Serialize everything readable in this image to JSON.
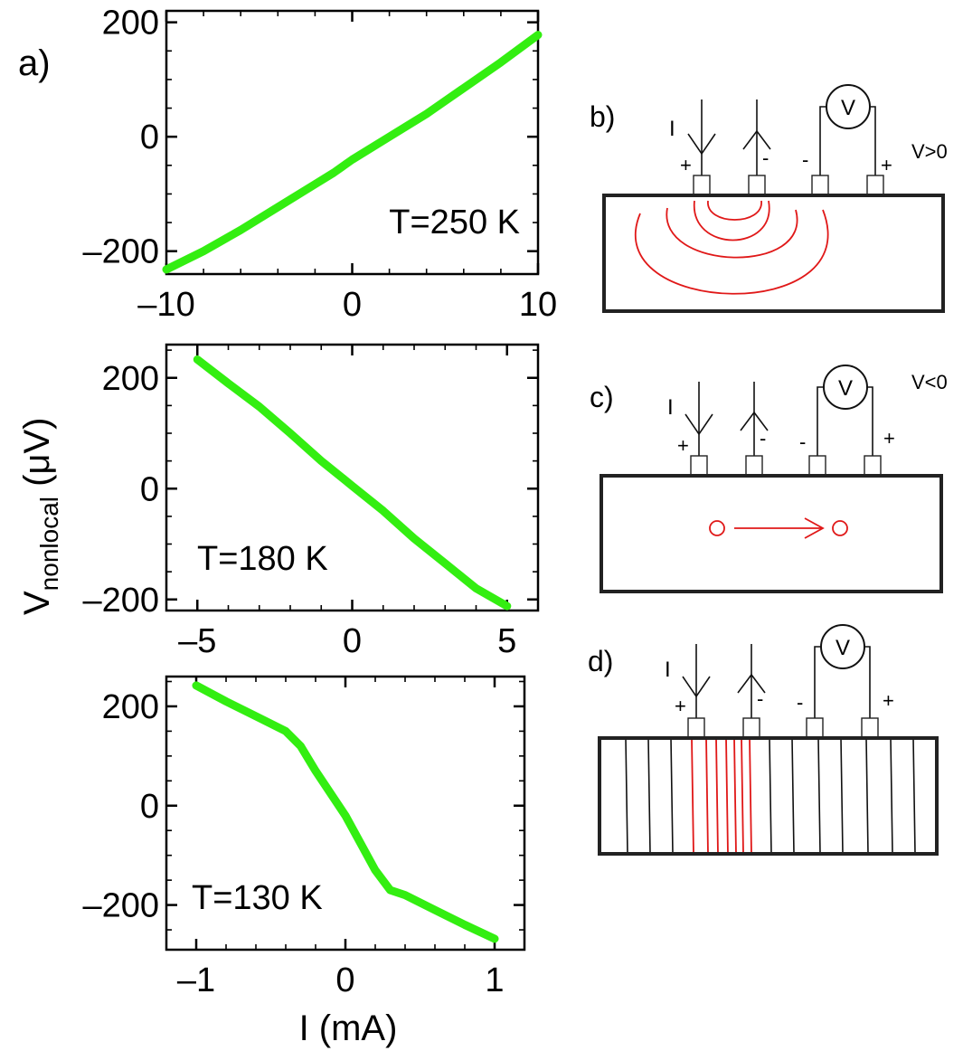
{
  "figure": {
    "panel_a_label": "a)",
    "ylabel_main": "V",
    "ylabel_sub": "nonlocal",
    "ylabel_unit": " (μV)",
    "xlabel": "I  (mA)"
  },
  "chart_data": [
    {
      "type": "line",
      "annotation": "T=250 K",
      "xlim": [
        -10,
        10
      ],
      "ylim": [
        -240,
        220
      ],
      "xticks": [
        "–10",
        "0",
        "10"
      ],
      "yticks": [
        "200",
        "0",
        "–200"
      ],
      "series": [
        {
          "x": [
            -10,
            -8,
            -6,
            -4,
            -2,
            -1,
            0,
            2,
            4,
            6,
            8,
            10
          ],
          "y": [
            -232,
            -200,
            -163,
            -123,
            -83,
            -63,
            -40,
            0,
            40,
            85,
            130,
            178
          ]
        }
      ]
    },
    {
      "type": "line",
      "annotation": "T=180 K",
      "xlim": [
        -6,
        6
      ],
      "ylim": [
        -220,
        260
      ],
      "xticks": [
        "–5",
        "0",
        "5"
      ],
      "yticks": [
        "200",
        "0",
        "–200"
      ],
      "series": [
        {
          "x": [
            -5,
            -4,
            -3,
            -2,
            -1,
            0,
            1,
            2,
            3,
            4,
            5
          ],
          "y": [
            233,
            190,
            148,
            100,
            50,
            5,
            -40,
            -90,
            -135,
            -180,
            -212
          ]
        }
      ]
    },
    {
      "type": "line",
      "annotation": "T=130 K",
      "xlim": [
        -1.2,
        1.2
      ],
      "ylim": [
        -290,
        260
      ],
      "xticks": [
        "–1",
        "0",
        "1"
      ],
      "yticks": [
        "200",
        "0",
        "–200"
      ],
      "series": [
        {
          "x": [
            -1.0,
            -0.8,
            -0.6,
            -0.4,
            -0.3,
            -0.2,
            -0.1,
            0.0,
            0.1,
            0.2,
            0.3,
            0.4,
            0.6,
            0.8,
            1.0
          ],
          "y": [
            242,
            210,
            180,
            150,
            120,
            70,
            25,
            -20,
            -75,
            -130,
            -170,
            -180,
            -210,
            -240,
            -268
          ]
        }
      ]
    }
  ],
  "diagrams": [
    {
      "label": "b)",
      "current": "I",
      "sign_note": "V>0",
      "meter": "V",
      "signs": [
        "+",
        "-",
        "-",
        "+"
      ]
    },
    {
      "label": "c)",
      "current": "I",
      "sign_note": "V<0",
      "meter": "V",
      "signs": [
        "+",
        "-",
        "-",
        "+"
      ]
    },
    {
      "label": "d)",
      "current": "I",
      "sign_note": "",
      "meter": "V",
      "signs": [
        "+",
        "-",
        "-",
        "+"
      ]
    }
  ],
  "colors": {
    "curve": "#33ee11",
    "field_lines": "#e01818"
  }
}
